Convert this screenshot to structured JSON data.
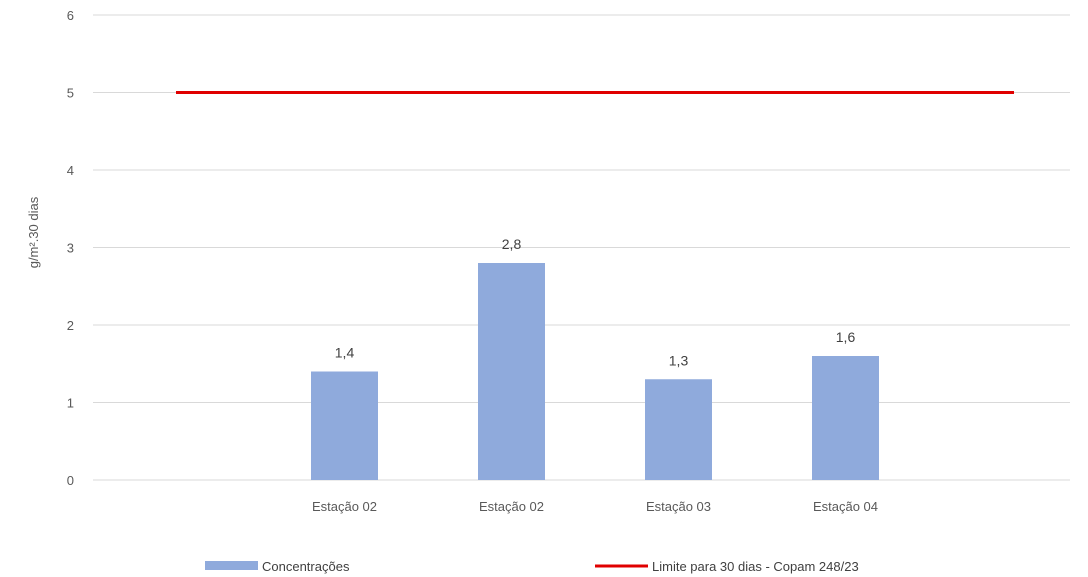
{
  "chart_data": {
    "type": "bar",
    "categories": [
      "Estação 02",
      "Estação 02",
      "Estação 03",
      "Estação 04"
    ],
    "series": [
      {
        "name": "Concentrações",
        "type": "bar",
        "values": [
          1.4,
          2.8,
          1.3,
          1.6
        ],
        "color": "#8faadc",
        "data_labels": [
          "1,4",
          "2,8",
          "1,3",
          "1,6"
        ]
      },
      {
        "name": "Limite para 30 dias - Copam 248/23",
        "type": "line",
        "value": 5,
        "color": "#e00000"
      }
    ],
    "ylabel": "g/m².30 dias",
    "ylim": [
      0,
      6
    ],
    "yticks": [
      0,
      1,
      2,
      3,
      4,
      5,
      6
    ],
    "grid": true,
    "legend": "bottom"
  }
}
